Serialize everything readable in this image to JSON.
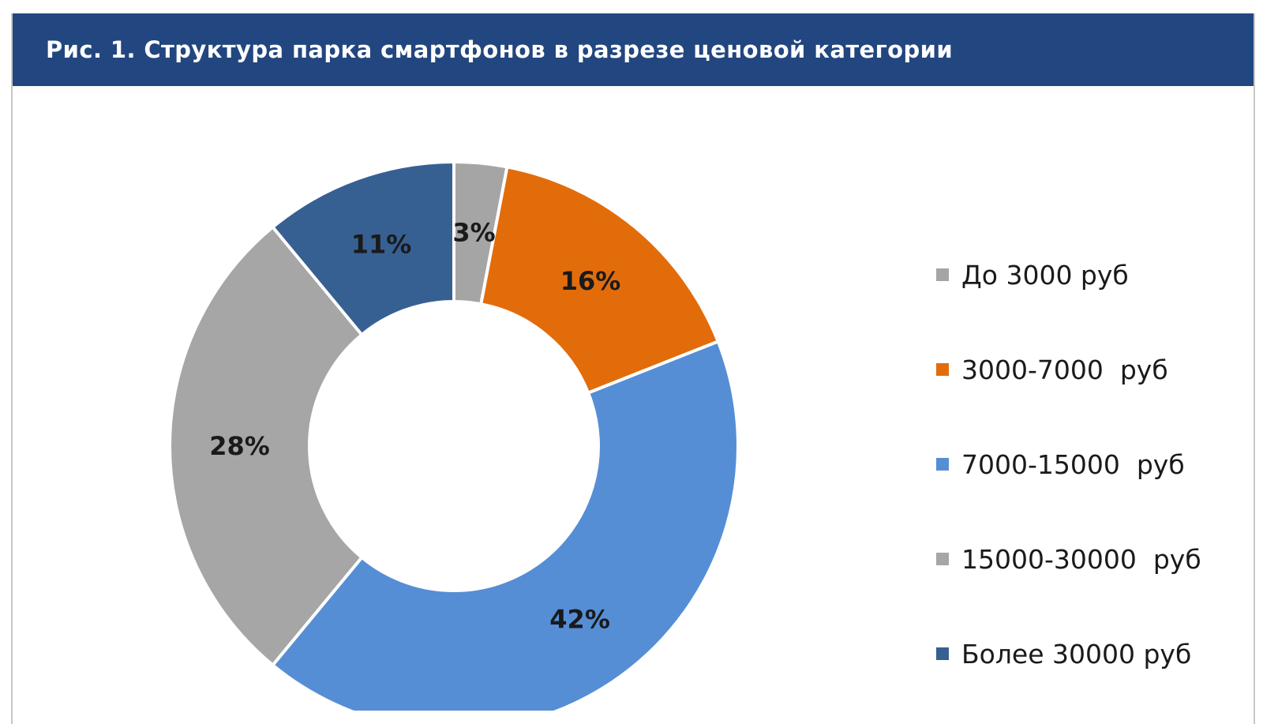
{
  "header": {
    "title": "Рис. 1.  Структура парка смартфонов в разрезе ценовой категории"
  },
  "chart_data": {
    "type": "pie",
    "variant": "donut",
    "title": "Рис. 1.  Структура парка смартфонов в разрезе ценовой категории",
    "legend_position": "right",
    "unit": "%",
    "slices": [
      {
        "label": "До 3000 руб",
        "value": 3,
        "display": "3%",
        "color": "#a5a5a5"
      },
      {
        "label": "3000-7000  руб",
        "value": 16,
        "display": "16%",
        "color": "#e36c0a"
      },
      {
        "label": "7000-15000  руб",
        "value": 42,
        "display": "42%",
        "color": "#558ed5"
      },
      {
        "label": "15000-30000  руб",
        "value": 28,
        "display": "28%",
        "color": "#a6a6a6"
      },
      {
        "label": "Более 30000 руб",
        "value": 11,
        "display": "11%",
        "color": "#376092"
      }
    ]
  }
}
